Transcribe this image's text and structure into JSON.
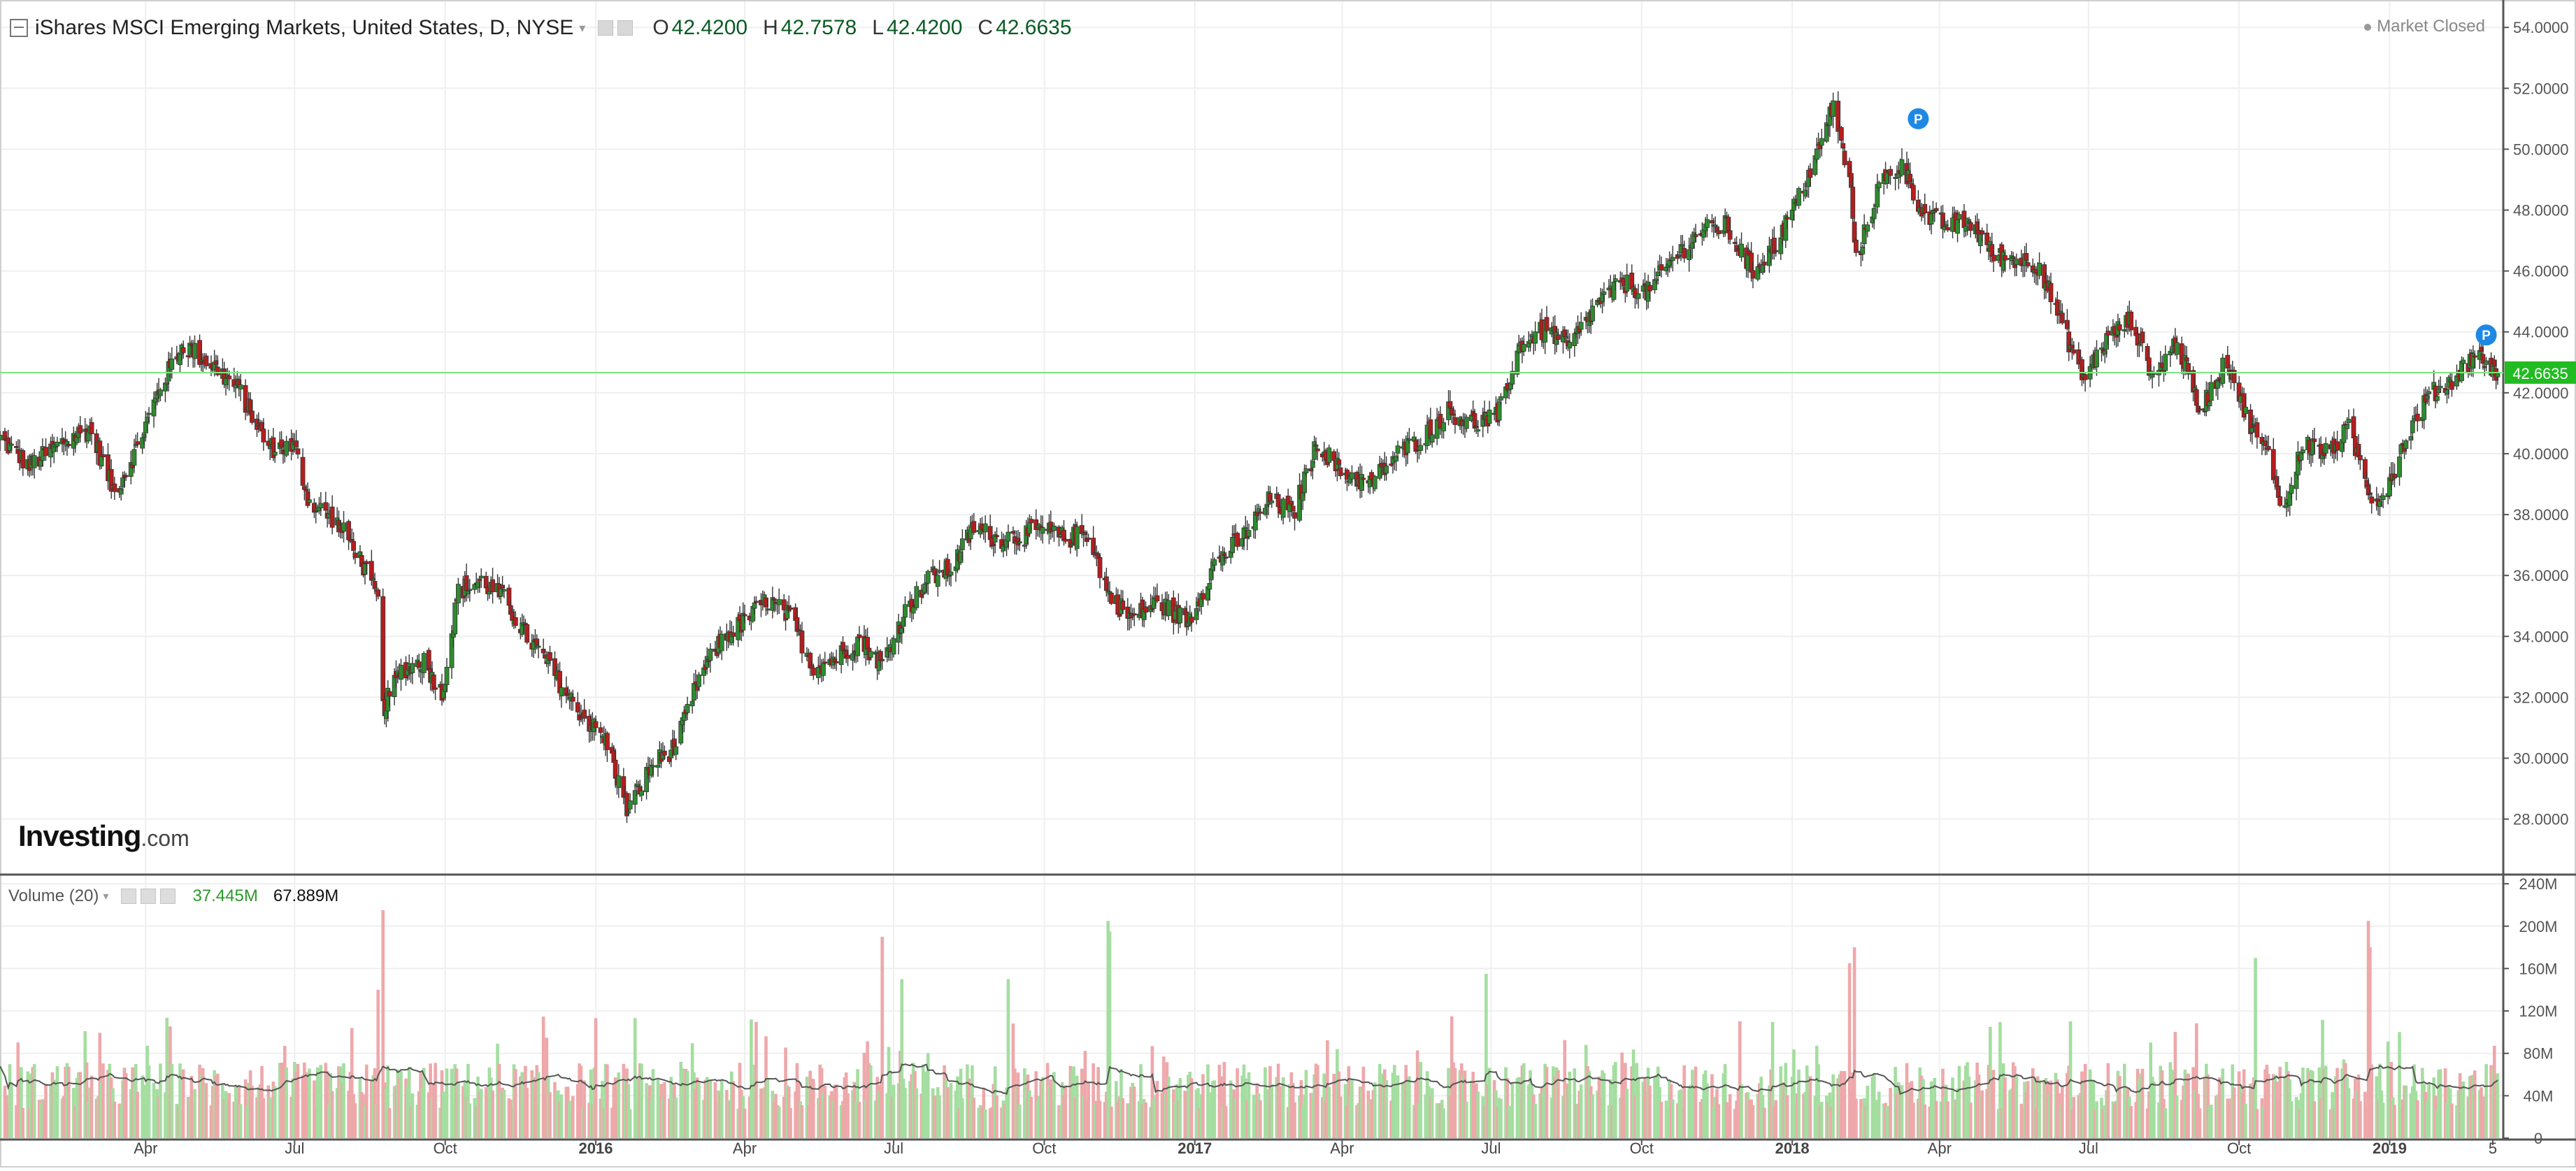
{
  "header": {
    "title": "iShares MSCI Emerging Markets, United States, D, NYSE",
    "open_label": "O",
    "open": "42.4200",
    "high_label": "H",
    "high": "42.7578",
    "low_label": "L",
    "low": "42.4200",
    "close_label": "C",
    "close": "42.6635",
    "market_status": "Market Closed"
  },
  "logo": {
    "brand": "Investing",
    "domain": ".com"
  },
  "volume_header": {
    "label": "Volume (20)",
    "value1": "37.445M",
    "value2": "67.889M"
  },
  "colors": {
    "up": "#2e8b2e",
    "down": "#b41e1e",
    "vol_up": "#a4dea0",
    "vol_down": "#eea8aa",
    "price_line": "#7fe57f",
    "price_badge": "#22bb22",
    "event": "#1e88e5"
  },
  "chart_data": [
    {
      "type": "candlestick",
      "title": "iShares MSCI Emerging Markets, United States, D, NYSE",
      "xlabel": "",
      "ylabel": "",
      "x_ticks": [
        "Apr",
        "Jul",
        "Oct",
        "2016",
        "Apr",
        "Jul",
        "Oct",
        "2017",
        "Apr",
        "Jul",
        "Oct",
        "2018",
        "Apr",
        "Jul",
        "Oct",
        "2019",
        "5"
      ],
      "x_tick_dates": [
        "2015-04-01",
        "2015-07-01",
        "2015-10-01",
        "2016-01-01",
        "2016-04-01",
        "2016-07-01",
        "2016-10-01",
        "2017-01-01",
        "2017-04-01",
        "2017-07-01",
        "2017-10-01",
        "2018-01-01",
        "2018-04-01",
        "2018-07-01",
        "2018-10-01",
        "2019-01-01",
        "2019-03-05"
      ],
      "x_range": [
        "2015-01-02",
        "2019-03-08"
      ],
      "y_ticks": [
        "28.0000",
        "30.0000",
        "32.0000",
        "34.0000",
        "36.0000",
        "38.0000",
        "40.0000",
        "42.0000",
        "44.0000",
        "46.0000",
        "48.0000",
        "50.0000",
        "52.0000",
        "54.0000"
      ],
      "ylim": [
        26.2,
        54.9
      ],
      "grid": true,
      "last_price": 42.6635,
      "last_price_label": "42.6635",
      "events": [
        {
          "date": "2018-03-19",
          "y": 51.0,
          "label": "P"
        },
        {
          "date": "2019-03-01",
          "y": 43.9,
          "label": "P"
        }
      ],
      "price_path": [
        [
          "2015-01-02",
          40.5
        ],
        [
          "2015-01-20",
          39.6
        ],
        [
          "2015-02-10",
          40.4
        ],
        [
          "2015-02-26",
          40.8
        ],
        [
          "2015-03-13",
          38.7
        ],
        [
          "2015-03-26",
          40.1
        ],
        [
          "2015-04-10",
          42.2
        ],
        [
          "2015-04-24",
          43.6
        ],
        [
          "2015-05-12",
          42.9
        ],
        [
          "2015-05-28",
          42.1
        ],
        [
          "2015-06-15",
          40.2
        ],
        [
          "2015-07-01",
          40.2
        ],
        [
          "2015-07-10",
          38.4
        ],
        [
          "2015-07-24",
          37.9
        ],
        [
          "2015-08-07",
          36.9
        ],
        [
          "2015-08-21",
          35.2
        ],
        [
          "2015-08-24",
          31.6
        ],
        [
          "2015-09-04",
          32.9
        ],
        [
          "2015-09-18",
          33.2
        ],
        [
          "2015-09-29",
          32.1
        ],
        [
          "2015-10-09",
          35.5
        ],
        [
          "2015-10-23",
          35.8
        ],
        [
          "2015-11-05",
          35.3
        ],
        [
          "2015-11-20",
          34.0
        ],
        [
          "2015-12-04",
          33.0
        ],
        [
          "2015-12-18",
          31.8
        ],
        [
          "2016-01-08",
          30.5
        ],
        [
          "2016-01-20",
          28.3
        ],
        [
          "2016-02-05",
          29.8
        ],
        [
          "2016-02-19",
          30.4
        ],
        [
          "2016-03-04",
          32.6
        ],
        [
          "2016-03-18",
          33.9
        ],
        [
          "2016-04-01",
          34.5
        ],
        [
          "2016-04-15",
          35.2
        ],
        [
          "2016-04-29",
          34.6
        ],
        [
          "2016-05-13",
          33.0
        ],
        [
          "2016-05-27",
          33.3
        ],
        [
          "2016-06-10",
          33.9
        ],
        [
          "2016-06-24",
          33.1
        ],
        [
          "2016-07-08",
          34.8
        ],
        [
          "2016-07-22",
          35.9
        ],
        [
          "2016-08-05",
          36.2
        ],
        [
          "2016-08-19",
          37.6
        ],
        [
          "2016-09-02",
          37.2
        ],
        [
          "2016-09-16",
          37.3
        ],
        [
          "2016-09-30",
          37.5
        ],
        [
          "2016-10-14",
          37.2
        ],
        [
          "2016-10-28",
          37.4
        ],
        [
          "2016-11-09",
          35.4
        ],
        [
          "2016-11-23",
          34.6
        ],
        [
          "2016-12-09",
          35.1
        ],
        [
          "2016-12-28",
          34.5
        ],
        [
          "2017-01-13",
          36.4
        ],
        [
          "2017-01-31",
          37.3
        ],
        [
          "2017-02-16",
          38.5
        ],
        [
          "2017-03-02",
          38.0
        ],
        [
          "2017-03-17",
          40.4
        ],
        [
          "2017-03-31",
          39.4
        ],
        [
          "2017-04-18",
          39.0
        ],
        [
          "2017-05-05",
          40.0
        ],
        [
          "2017-05-19",
          40.5
        ],
        [
          "2017-06-05",
          41.4
        ],
        [
          "2017-06-20",
          41.0
        ],
        [
          "2017-07-05",
          41.2
        ],
        [
          "2017-07-19",
          43.6
        ],
        [
          "2017-08-04",
          44.1
        ],
        [
          "2017-08-18",
          43.5
        ],
        [
          "2017-09-05",
          45.0
        ],
        [
          "2017-09-20",
          45.6
        ],
        [
          "2017-10-05",
          45.3
        ],
        [
          "2017-10-20",
          46.4
        ],
        [
          "2017-11-06",
          47.3
        ],
        [
          "2017-11-21",
          47.5
        ],
        [
          "2017-12-08",
          46.0
        ],
        [
          "2017-12-22",
          46.9
        ],
        [
          "2018-01-05",
          48.4
        ],
        [
          "2018-01-19",
          50.2
        ],
        [
          "2018-01-26",
          51.5
        ],
        [
          "2018-02-06",
          48.6
        ],
        [
          "2018-02-09",
          46.3
        ],
        [
          "2018-02-23",
          48.8
        ],
        [
          "2018-03-09",
          49.5
        ],
        [
          "2018-03-23",
          47.8
        ],
        [
          "2018-04-06",
          47.5
        ],
        [
          "2018-04-20",
          47.6
        ],
        [
          "2018-05-04",
          46.5
        ],
        [
          "2018-05-18",
          46.4
        ],
        [
          "2018-06-01",
          46.2
        ],
        [
          "2018-06-15",
          44.2
        ],
        [
          "2018-06-28",
          42.5
        ],
        [
          "2018-07-13",
          43.8
        ],
        [
          "2018-07-27",
          44.4
        ],
        [
          "2018-08-10",
          42.5
        ],
        [
          "2018-08-24",
          43.7
        ],
        [
          "2018-09-07",
          41.4
        ],
        [
          "2018-09-24",
          43.1
        ],
        [
          "2018-10-05",
          41.3
        ],
        [
          "2018-10-19",
          39.9
        ],
        [
          "2018-10-29",
          38.1
        ],
        [
          "2018-11-09",
          40.4
        ],
        [
          "2018-11-23",
          40.0
        ],
        [
          "2018-12-07",
          40.8
        ],
        [
          "2018-12-21",
          38.6
        ],
        [
          "2018-12-28",
          38.6
        ],
        [
          "2019-01-11",
          40.5
        ],
        [
          "2019-01-25",
          41.9
        ],
        [
          "2019-02-08",
          42.4
        ],
        [
          "2019-02-22",
          43.3
        ],
        [
          "2019-03-08",
          42.66
        ]
      ]
    },
    {
      "type": "bar",
      "title": "Volume (20)",
      "y_ticks": [
        "0",
        "40M",
        "80M",
        "120M",
        "160M",
        "200M",
        "240M"
      ],
      "ylim_millions": [
        0,
        248
      ],
      "base_volume_millions": 60,
      "volume_spikes": [
        [
          "2015-08-24",
          215
        ],
        [
          "2015-08-21",
          140
        ],
        [
          "2016-06-24",
          190
        ],
        [
          "2016-07-06",
          150
        ],
        [
          "2016-09-09",
          150
        ],
        [
          "2016-11-09",
          205
        ],
        [
          "2016-11-10",
          195
        ],
        [
          "2017-06-28",
          155
        ],
        [
          "2018-02-05",
          165
        ],
        [
          "2018-02-08",
          180
        ],
        [
          "2018-10-11",
          170
        ],
        [
          "2018-12-19",
          205
        ],
        [
          "2018-12-20",
          180
        ]
      ]
    }
  ]
}
